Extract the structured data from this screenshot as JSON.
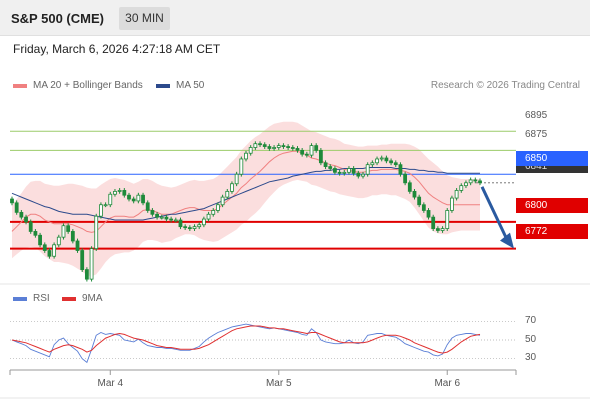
{
  "header": {
    "title": "S&P 500 (CME)",
    "timeframe": "30 MIN"
  },
  "date_label": "Friday, March 6, 2026 4:27:18 AM CET",
  "legend": {
    "bb_label": "MA 20 + Bollinger Bands",
    "ma50_label": "MA 50",
    "copyright": "Research © 2026 Trading Central",
    "rsi_label": "RSI",
    "ma9_label": "9MA"
  },
  "levels": {
    "r2": "6895",
    "r1": "6875",
    "pivot": "6850",
    "last": "6841",
    "s1": "6800",
    "s2": "6772"
  },
  "colors": {
    "resistance": "#9ccc6a",
    "pivot": "#2962ff",
    "support": "#e00000",
    "candle": "#1e8a3a",
    "bollinger": "#f8c8c8",
    "ma20": "#f08080",
    "ma50": "#2c4a8c",
    "rsi": "#5b7fd6",
    "rsi_ma": "#e03030",
    "arrow": "#2a5aa0"
  },
  "rsi_ticks": [
    "70",
    "50",
    "30"
  ],
  "x_ticks": [
    "Mar 4",
    "Mar 5",
    "Mar 6"
  ],
  "chart_data": {
    "type": "candlestick",
    "ylim": [
      6737,
      6932
    ],
    "x_ticks": [
      "Mar 4",
      "Mar 5",
      "Mar 6"
    ],
    "close": [
      6820,
      6810,
      6805,
      6800,
      6790,
      6786,
      6776,
      6770,
      6764,
      6776,
      6784,
      6796,
      6790,
      6780,
      6770,
      6750,
      6740,
      6772,
      6806,
      6818,
      6818,
      6829,
      6832,
      6833,
      6828,
      6824,
      6822,
      6828,
      6820,
      6812,
      6808,
      6805,
      6805,
      6803,
      6802,
      6802,
      6795,
      6794,
      6793,
      6795,
      6797,
      6803,
      6808,
      6812,
      6818,
      6826,
      6832,
      6840,
      6850,
      6866,
      6872,
      6878,
      6882,
      6881,
      6879,
      6877,
      6878,
      6880,
      6879,
      6878,
      6877,
      6875,
      6871,
      6870,
      6880,
      6875,
      6862,
      6858,
      6856,
      6852,
      6851,
      6852,
      6856,
      6851,
      6848,
      6850,
      6860,
      6862,
      6866,
      6867,
      6864,
      6862,
      6860,
      6850,
      6841,
      6832,
      6826,
      6818,
      6812,
      6805,
      6793,
      6791,
      6793,
      6812,
      6825,
      6833,
      6838,
      6841,
      6844,
      6843,
      6841
    ],
    "ma20": [
      6790,
      6795,
      6800,
      6805,
      6808,
      6808,
      6806,
      6802,
      6800,
      6798,
      6798,
      6798,
      6798,
      6797,
      6795,
      6793,
      6790,
      6789,
      6790,
      6795,
      6800,
      6804,
      6806,
      6806,
      6806,
      6805,
      6805,
      6808,
      6812,
      6813,
      6812,
      6810,
      6808,
      6808,
      6808,
      6810,
      6812,
      6814,
      6815,
      6815,
      6813,
      6812,
      6812,
      6812,
      6814,
      6818,
      6822,
      6826,
      6830,
      6836,
      6840,
      6845,
      6849,
      6853,
      6858,
      6863,
      6867,
      6870,
      6872,
      6873,
      6874,
      6874,
      6872,
      6870,
      6867,
      6866,
      6864,
      6862,
      6860,
      6859,
      6857,
      6855,
      6854,
      6853,
      6852,
      6852,
      6853,
      6854,
      6854,
      6855,
      6855,
      6855,
      6855,
      6854,
      6853,
      6851,
      6847,
      6842,
      6836,
      6830,
      6826,
      6823,
      6820,
      6818,
      6818,
      6818,
      6818,
      6818,
      6818,
      6818,
      6818
    ],
    "ma50": [
      6830,
      6828,
      6826,
      6824,
      6822,
      6820,
      6818,
      6816,
      6815,
      6813,
      6811,
      6810,
      6809,
      6808,
      6808,
      6808,
      6808,
      6807,
      6806,
      6805,
      6804,
      6803,
      6802,
      6802,
      6802,
      6802,
      6802,
      6802,
      6802,
      6803,
      6804,
      6805,
      6806,
      6807,
      6808,
      6808,
      6809,
      6810,
      6811,
      6812,
      6813,
      6814,
      6816,
      6818,
      6820,
      6822,
      6824,
      6826,
      6828,
      6830,
      6832,
      6834,
      6836,
      6838,
      6840,
      6842,
      6843,
      6844,
      6845,
      6846,
      6848,
      6849,
      6850,
      6851,
      6852,
      6853,
      6853,
      6854,
      6854,
      6855,
      6855,
      6856,
      6856,
      6856,
      6856,
      6856,
      6857,
      6857,
      6857,
      6857,
      6857,
      6857,
      6856,
      6856,
      6856,
      6855,
      6855,
      6854,
      6854,
      6853,
      6853,
      6852,
      6852,
      6851,
      6851,
      6851,
      6851,
      6851,
      6851,
      6851,
      6851
    ],
    "bb_width": [
      28,
      29,
      30,
      32,
      34,
      35,
      37,
      38,
      39,
      40,
      40,
      41,
      42,
      43,
      44,
      45,
      46,
      46,
      45,
      44,
      42,
      41,
      40,
      39,
      38,
      37,
      35,
      34,
      33,
      32,
      31,
      30,
      30,
      29,
      28,
      27,
      27,
      27,
      28,
      29,
      30,
      31,
      32,
      33,
      34,
      35,
      36,
      37,
      38,
      39,
      40,
      40,
      40,
      39,
      38,
      37,
      36,
      34,
      33,
      32,
      31,
      30,
      29,
      28,
      28,
      28,
      28,
      28,
      28,
      28,
      28,
      27,
      27,
      27,
      27,
      27,
      27,
      26,
      26,
      26,
      26,
      27,
      27,
      28,
      29,
      30,
      32,
      34,
      35,
      36,
      36,
      35,
      33,
      31,
      29,
      28,
      27,
      27,
      27,
      27,
      27
    ],
    "rsi": [
      50,
      48,
      46,
      44,
      40,
      38,
      36,
      34,
      32,
      45,
      50,
      52,
      46,
      42,
      38,
      30,
      26,
      40,
      55,
      58,
      56,
      57,
      56,
      55,
      50,
      49,
      48,
      51,
      47,
      44,
      43,
      42,
      42,
      41,
      41,
      40,
      39,
      39,
      39,
      41,
      43,
      48,
      52,
      55,
      58,
      60,
      62,
      64,
      65,
      66,
      67,
      66,
      65,
      64,
      63,
      62,
      63,
      62,
      61,
      60,
      59,
      58,
      56,
      55,
      62,
      58,
      50,
      48,
      47,
      46,
      46,
      47,
      50,
      47,
      46,
      48,
      55,
      56,
      57,
      57,
      55,
      54,
      53,
      50,
      46,
      44,
      42,
      40,
      38,
      37,
      34,
      33,
      35,
      45,
      52,
      55,
      56,
      57,
      57,
      56,
      55
    ],
    "rsi_ma": [
      50,
      49,
      48,
      47,
      45,
      43,
      41,
      39,
      37,
      40,
      42,
      44,
      45,
      44,
      42,
      40,
      37,
      39,
      44,
      48,
      52,
      54,
      56,
      57,
      56,
      54,
      52,
      51,
      50,
      48,
      46,
      44,
      43,
      42,
      42,
      41,
      40,
      40,
      40,
      40,
      41,
      43,
      45,
      48,
      51,
      54,
      57,
      60,
      62,
      63,
      64,
      65,
      65,
      65,
      64,
      63,
      63,
      62,
      62,
      61,
      60,
      59,
      58,
      57,
      58,
      58,
      56,
      54,
      52,
      50,
      48,
      47,
      47,
      47,
      47,
      47,
      48,
      50,
      52,
      54,
      55,
      55,
      55,
      54,
      52,
      50,
      47,
      45,
      43,
      41,
      39,
      37,
      36,
      37,
      40,
      44,
      48,
      51,
      54,
      55,
      56
    ],
    "levels": [
      6895,
      6875,
      6850,
      6841,
      6800,
      6772
    ],
    "arrow_target": 6772
  }
}
